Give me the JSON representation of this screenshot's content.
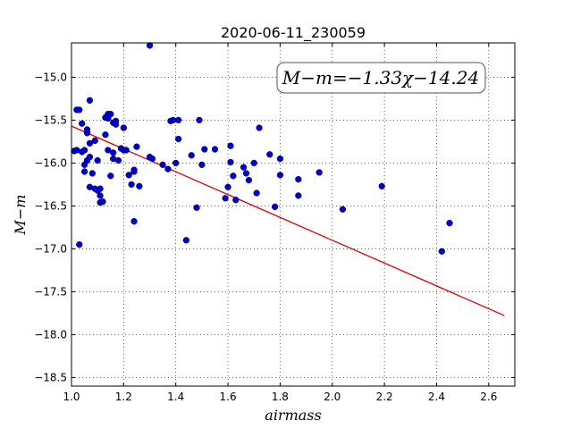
{
  "chart_data": {
    "type": "scatter",
    "title": "2020-06-11_230059",
    "xlabel": "airmass",
    "ylabel": "M−m",
    "xlim": [
      1.0,
      2.7
    ],
    "ylim": [
      -18.6,
      -14.6
    ],
    "xticks": [
      1.0,
      1.2,
      1.4,
      1.6,
      1.8,
      2.0,
      2.2,
      2.4,
      2.6
    ],
    "yticks": [
      -15.0,
      -15.5,
      -16.0,
      -16.5,
      -17.0,
      -17.5,
      -18.0,
      -18.5
    ],
    "xtick_labels": [
      "1.0",
      "1.2",
      "1.4",
      "1.6",
      "1.8",
      "2.0",
      "2.2",
      "2.4",
      "2.6"
    ],
    "ytick_labels": [
      "−15.0",
      "−15.5",
      "−16.0",
      "−16.5",
      "−17.0",
      "−17.5",
      "−18.0",
      "−18.5"
    ],
    "grid": true,
    "annotation": "M−m=−1.33χ−14.24",
    "fit": {
      "slope": -1.33,
      "intercept": -14.24,
      "x_range": [
        1.0,
        2.66
      ]
    },
    "points": {
      "x": [
        1.01,
        1.02,
        1.03,
        1.04,
        1.05,
        1.05,
        1.06,
        1.06,
        1.07,
        1.07,
        1.07,
        1.08,
        1.09,
        1.1,
        1.1,
        1.11,
        1.11,
        1.12,
        1.13,
        1.13,
        1.14,
        1.14,
        1.15,
        1.16,
        1.16,
        1.17,
        1.18,
        1.19,
        1.2,
        1.21,
        1.22,
        1.23,
        1.24,
        1.24,
        1.25,
        1.26,
        1.02,
        1.03,
        1.04,
        1.05,
        1.06,
        1.07,
        1.09,
        1.11,
        1.14,
        1.15,
        1.16,
        1.17,
        1.2,
        1.24,
        1.3,
        1.3,
        1.31,
        1.35,
        1.37,
        1.38,
        1.39,
        1.4,
        1.41,
        1.41,
        1.44,
        1.46,
        1.48,
        1.49,
        1.5,
        1.51,
        1.55,
        1.59,
        1.6,
        1.61,
        1.61,
        1.62,
        1.63,
        1.66,
        1.67,
        1.68,
        1.7,
        1.71,
        1.72,
        1.76,
        1.78,
        1.8,
        1.8,
        1.87,
        1.87,
        1.95,
        2.04,
        2.19,
        2.42,
        2.45
      ],
      "y": [
        -15.86,
        -15.85,
        -16.95,
        -15.87,
        -16.1,
        -16.02,
        -15.65,
        -15.97,
        -15.93,
        -15.77,
        -16.28,
        -16.12,
        -15.74,
        -15.97,
        -16.32,
        -16.38,
        -16.46,
        -16.45,
        -15.47,
        -15.67,
        -15.85,
        -15.43,
        -16.15,
        -15.88,
        -15.95,
        -15.55,
        -15.97,
        -15.83,
        -15.59,
        -15.85,
        -16.14,
        -16.25,
        -16.68,
        -16.1,
        -15.81,
        -16.27,
        -15.38,
        -15.38,
        -15.54,
        -15.85,
        -15.61,
        -15.27,
        -16.3,
        -16.3,
        -15.48,
        -15.43,
        -15.53,
        -15.51,
        -15.85,
        -16.08,
        -14.63,
        -15.93,
        -15.95,
        -16.02,
        -16.07,
        -15.51,
        -15.5,
        -16.0,
        -15.5,
        -15.72,
        -16.9,
        -15.91,
        -16.52,
        -15.5,
        -16.02,
        -15.84,
        -15.84,
        -16.41,
        -16.28,
        -15.8,
        -15.99,
        -16.15,
        -16.43,
        -16.05,
        -16.12,
        -16.2,
        -16.0,
        -16.35,
        -15.59,
        -15.9,
        -16.51,
        -15.95,
        -16.14,
        -16.19,
        -16.38,
        -16.11,
        -16.54,
        -16.27,
        -17.03,
        -16.7
      ]
    },
    "colors": {
      "points": "#0000cc",
      "fit_line": "#dd0000"
    }
  }
}
